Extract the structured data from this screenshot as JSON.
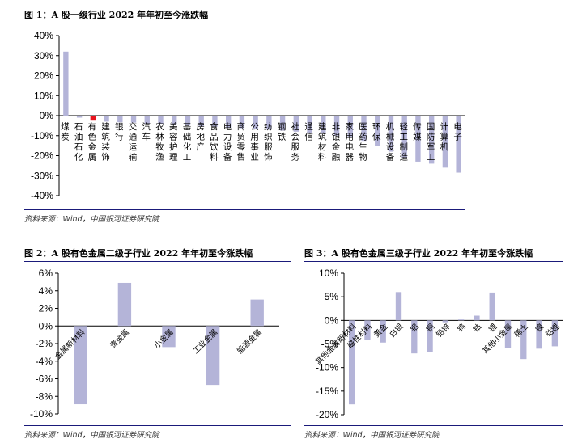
{
  "figures": [
    {
      "title": "图 1：A 股一级行业 2022 年年初至今涨跌幅",
      "source": "资料来源：Wind，中国银河证券研究院"
    },
    {
      "title": "图 2：A 股有色金属二级子行业 2022 年年初至今涨跌幅",
      "source": "资料来源：Wind，中国银河证券研究院"
    },
    {
      "title": "图 3：A 股有色金属三级子行业 2022 年年初至今涨跌幅",
      "source": "资料来源：Wind，中国银河证券研究院"
    }
  ],
  "chart_data": [
    {
      "type": "bar",
      "categories": [
        "煤炭",
        "石油石化",
        "有色金属",
        "建筑装饰",
        "银行",
        "交通运输",
        "汽车",
        "农林牧渔",
        "美容护理",
        "基础化工",
        "房地产",
        "食品饮料",
        "电力设备",
        "商贸零售",
        "公用事业",
        "纺织服饰",
        "钢铁",
        "社会服务",
        "通信",
        "建筑材料",
        "非银金融",
        "家用电器",
        "医药生物",
        "环保",
        "机械设备",
        "轻工制造",
        "传媒",
        "国防军工",
        "计算机",
        "电子"
      ],
      "values": [
        32.0,
        -1.0,
        -2.5,
        -3.0,
        -3.3,
        -3.5,
        -4.0,
        -4.3,
        -4.6,
        -5.0,
        -5.3,
        -5.6,
        -6.0,
        -6.3,
        -6.6,
        -7.0,
        -7.5,
        -8.0,
        -8.5,
        -9.0,
        -10.0,
        -11.0,
        -13.0,
        -15.0,
        -18.0,
        -21.0,
        -23.0,
        -24.0,
        -26.0,
        -28.5
      ],
      "highlight": "有色金属",
      "highlight_color": "#e8141e",
      "bar_color": "#b4b4d8",
      "yticks": [
        "40%",
        "30%",
        "20%",
        "10%",
        "0%",
        "-10%",
        "-20%",
        "-30%",
        "-40%"
      ],
      "ylim": [
        -40,
        40
      ]
    },
    {
      "type": "bar",
      "categories": [
        "金属新材料",
        "贵金属",
        "小金属",
        "工业金属",
        "能源金属"
      ],
      "values": [
        -8.9,
        4.9,
        -2.4,
        -6.7,
        3.0
      ],
      "bar_color": "#b4b4d8",
      "yticks": [
        "6%",
        "4%",
        "2%",
        "0%",
        "-2%",
        "-4%",
        "-6%",
        "-8%",
        "-10%"
      ],
      "ylim": [
        -10,
        6
      ]
    },
    {
      "type": "bar",
      "categories": [
        "其他金属新材料",
        "磁性材料",
        "黄金",
        "白银",
        "铝",
        "铜",
        "铅锌",
        "钨",
        "钴",
        "锂",
        "其他小金属",
        "稀土",
        "镍",
        "钴锂"
      ],
      "values": [
        -17.8,
        -4.2,
        -4.7,
        6.0,
        -7.0,
        -6.8,
        -0.4,
        0.2,
        1.0,
        5.9,
        -5.8,
        -8.2,
        -6.0,
        -5.5
      ],
      "bar_color": "#b4b4d8",
      "yticks": [
        "10%",
        "5%",
        "0%",
        "-5%",
        "-10%",
        "-15%",
        "-20%"
      ],
      "ylim": [
        -20,
        10
      ]
    }
  ]
}
